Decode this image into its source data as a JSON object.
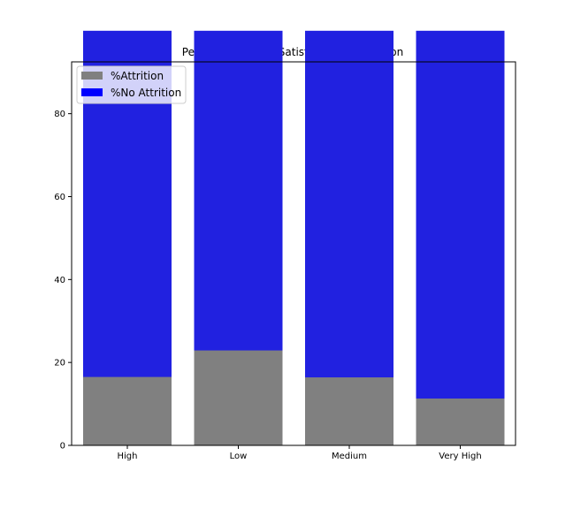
{
  "chart_data": {
    "type": "bar",
    "stacked": true,
    "title": "Percentage of Job Satisfaction by Attrition",
    "xlabel": "",
    "ylabel": "",
    "categories": [
      "High",
      "Low",
      "Medium",
      "Very High"
    ],
    "series": [
      {
        "name": "%Attrition",
        "color": "#808080",
        "values": [
          16.5,
          22.9,
          16.4,
          11.3
        ]
      },
      {
        "name": "%No Attrition",
        "color": "#0000ff",
        "values": [
          83.5,
          77.1,
          83.6,
          88.7
        ]
      }
    ],
    "overlay_color": "#2121e0",
    "yticks": [
      0,
      20,
      40,
      60,
      80
    ],
    "ylim": [
      0,
      92.5
    ],
    "legend": "top-left",
    "grid": false
  }
}
